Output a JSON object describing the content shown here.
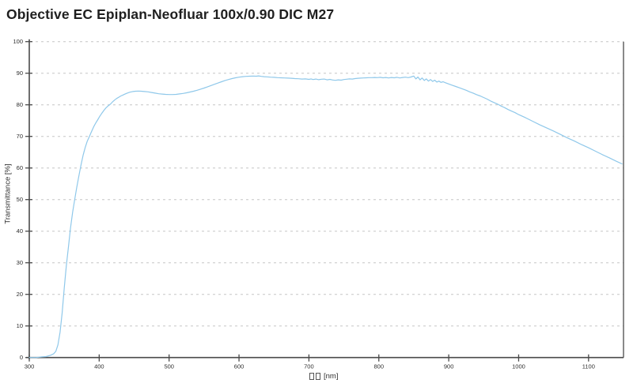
{
  "title": "Objective EC Epiplan-Neofluar 100x/0.90 DIC M27",
  "y_axis_title": "Transmittance [%]",
  "x_axis_unit": "[nm]",
  "x_axis_missing_glyph_count": 2,
  "colors": {
    "background": "#ffffff",
    "title_text": "#1f1f1f",
    "axis": "#4a4a4a",
    "grid": "#c6c6c6",
    "tick_text": "#2f2f2f",
    "curve": "#8fc8ea"
  },
  "chart_data": {
    "type": "line",
    "title": "Objective EC Epiplan-Neofluar 100x/0.90 DIC M27",
    "xlabel": "□□ [nm]",
    "ylabel": "Transmittance [%]",
    "xlim": [
      300,
      1150
    ],
    "ylim": [
      0,
      100
    ],
    "x_ticks": [
      300,
      400,
      500,
      600,
      700,
      800,
      900,
      1000,
      1100
    ],
    "y_ticks": [
      0,
      10,
      20,
      30,
      40,
      50,
      60,
      70,
      80,
      90,
      100
    ],
    "grid": "horizontal-dashed",
    "legend": "none",
    "series": [
      {
        "name": "transmittance",
        "color": "#8fc8ea",
        "points": [
          [
            300,
            0
          ],
          [
            310,
            0
          ],
          [
            318,
            0.2
          ],
          [
            324,
            0.3
          ],
          [
            330,
            0.7
          ],
          [
            335,
            1.2
          ],
          [
            338,
            2
          ],
          [
            341,
            4
          ],
          [
            344,
            8
          ],
          [
            347,
            14
          ],
          [
            350,
            22
          ],
          [
            353,
            29
          ],
          [
            356,
            35
          ],
          [
            359,
            41
          ],
          [
            362,
            46
          ],
          [
            365,
            50
          ],
          [
            368,
            54
          ],
          [
            371,
            57.5
          ],
          [
            374,
            61
          ],
          [
            377,
            64
          ],
          [
            380,
            66.5
          ],
          [
            383,
            68.5
          ],
          [
            386,
            70
          ],
          [
            389,
            71.5
          ],
          [
            392,
            73
          ],
          [
            395,
            74.2
          ],
          [
            398,
            75.3
          ],
          [
            401,
            76.4
          ],
          [
            404,
            77.4
          ],
          [
            407,
            78.3
          ],
          [
            410,
            79.1
          ],
          [
            413,
            79.7
          ],
          [
            416,
            80.2
          ],
          [
            419,
            80.9
          ],
          [
            422,
            81.5
          ],
          [
            425,
            82
          ],
          [
            428,
            82.4
          ],
          [
            431,
            82.8
          ],
          [
            434,
            83.1
          ],
          [
            437,
            83.4
          ],
          [
            440,
            83.7
          ],
          [
            444,
            84
          ],
          [
            448,
            84.2
          ],
          [
            452,
            84.3
          ],
          [
            456,
            84.35
          ],
          [
            460,
            84.3
          ],
          [
            465,
            84.2
          ],
          [
            470,
            84.1
          ],
          [
            475,
            83.9
          ],
          [
            480,
            83.7
          ],
          [
            485,
            83.5
          ],
          [
            490,
            83.4
          ],
          [
            495,
            83.3
          ],
          [
            500,
            83.25
          ],
          [
            505,
            83.25
          ],
          [
            510,
            83.3
          ],
          [
            515,
            83.45
          ],
          [
            520,
            83.6
          ],
          [
            525,
            83.8
          ],
          [
            530,
            84.05
          ],
          [
            535,
            84.3
          ],
          [
            540,
            84.6
          ],
          [
            545,
            84.95
          ],
          [
            550,
            85.3
          ],
          [
            555,
            85.7
          ],
          [
            560,
            86.1
          ],
          [
            565,
            86.5
          ],
          [
            570,
            86.9
          ],
          [
            575,
            87.3
          ],
          [
            580,
            87.7
          ],
          [
            585,
            88
          ],
          [
            590,
            88.3
          ],
          [
            595,
            88.55
          ],
          [
            600,
            88.75
          ],
          [
            605,
            88.9
          ],
          [
            610,
            89
          ],
          [
            615,
            89.05
          ],
          [
            620,
            89.1
          ],
          [
            625,
            89.05
          ],
          [
            628,
            89.15
          ],
          [
            632,
            89
          ],
          [
            636,
            88.9
          ],
          [
            640,
            88.85
          ],
          [
            645,
            88.75
          ],
          [
            650,
            88.7
          ],
          [
            655,
            88.6
          ],
          [
            660,
            88.55
          ],
          [
            665,
            88.5
          ],
          [
            670,
            88.45
          ],
          [
            675,
            88.4
          ],
          [
            680,
            88.3
          ],
          [
            685,
            88.25
          ],
          [
            690,
            88.15
          ],
          [
            695,
            88.2
          ],
          [
            700,
            88.05
          ],
          [
            703,
            88.2
          ],
          [
            706,
            88
          ],
          [
            710,
            88.15
          ],
          [
            714,
            87.95
          ],
          [
            718,
            88.1
          ],
          [
            722,
            88.15
          ],
          [
            726,
            87.9
          ],
          [
            730,
            88.05
          ],
          [
            734,
            87.85
          ],
          [
            738,
            87.75
          ],
          [
            742,
            87.9
          ],
          [
            746,
            87.8
          ],
          [
            750,
            88
          ],
          [
            754,
            88.1
          ],
          [
            758,
            88.2
          ],
          [
            762,
            88.15
          ],
          [
            766,
            88.3
          ],
          [
            770,
            88.4
          ],
          [
            774,
            88.45
          ],
          [
            778,
            88.5
          ],
          [
            782,
            88.55
          ],
          [
            786,
            88.6
          ],
          [
            790,
            88.6
          ],
          [
            794,
            88.65
          ],
          [
            798,
            88.6
          ],
          [
            802,
            88.7
          ],
          [
            806,
            88.55
          ],
          [
            810,
            88.65
          ],
          [
            814,
            88.5
          ],
          [
            818,
            88.65
          ],
          [
            822,
            88.55
          ],
          [
            826,
            88.7
          ],
          [
            830,
            88.5
          ],
          [
            834,
            88.65
          ],
          [
            838,
            88.75
          ],
          [
            842,
            88.6
          ],
          [
            846,
            88.8
          ],
          [
            850,
            89.1
          ],
          [
            853,
            88.2
          ],
          [
            856,
            88.8
          ],
          [
            859,
            87.9
          ],
          [
            862,
            88.5
          ],
          [
            865,
            87.7
          ],
          [
            868,
            88.2
          ],
          [
            871,
            87.5
          ],
          [
            874,
            88
          ],
          [
            877,
            87.4
          ],
          [
            880,
            87.8
          ],
          [
            883,
            87.2
          ],
          [
            886,
            87.5
          ],
          [
            889,
            87.1
          ],
          [
            892,
            87.3
          ],
          [
            895,
            87
          ],
          [
            900,
            86.6
          ],
          [
            905,
            86.2
          ],
          [
            910,
            85.8
          ],
          [
            915,
            85.4
          ],
          [
            920,
            85
          ],
          [
            925,
            84.6
          ],
          [
            930,
            84.1
          ],
          [
            935,
            83.7
          ],
          [
            940,
            83.2
          ],
          [
            945,
            82.8
          ],
          [
            950,
            82.3
          ],
          [
            955,
            81.8
          ],
          [
            960,
            81.2
          ],
          [
            965,
            80.7
          ],
          [
            970,
            80.2
          ],
          [
            975,
            79.6
          ],
          [
            980,
            79.1
          ],
          [
            985,
            78.5
          ],
          [
            990,
            78
          ],
          [
            995,
            77.5
          ],
          [
            1000,
            76.9
          ],
          [
            1010,
            75.9
          ],
          [
            1020,
            74.8
          ],
          [
            1030,
            73.7
          ],
          [
            1040,
            72.7
          ],
          [
            1050,
            71.7
          ],
          [
            1060,
            70.6
          ],
          [
            1070,
            69.5
          ],
          [
            1080,
            68.5
          ],
          [
            1090,
            67.4
          ],
          [
            1100,
            66.4
          ],
          [
            1110,
            65.3
          ],
          [
            1120,
            64.2
          ],
          [
            1130,
            63.2
          ],
          [
            1140,
            62.1
          ],
          [
            1148,
            61.3
          ]
        ]
      }
    ]
  }
}
